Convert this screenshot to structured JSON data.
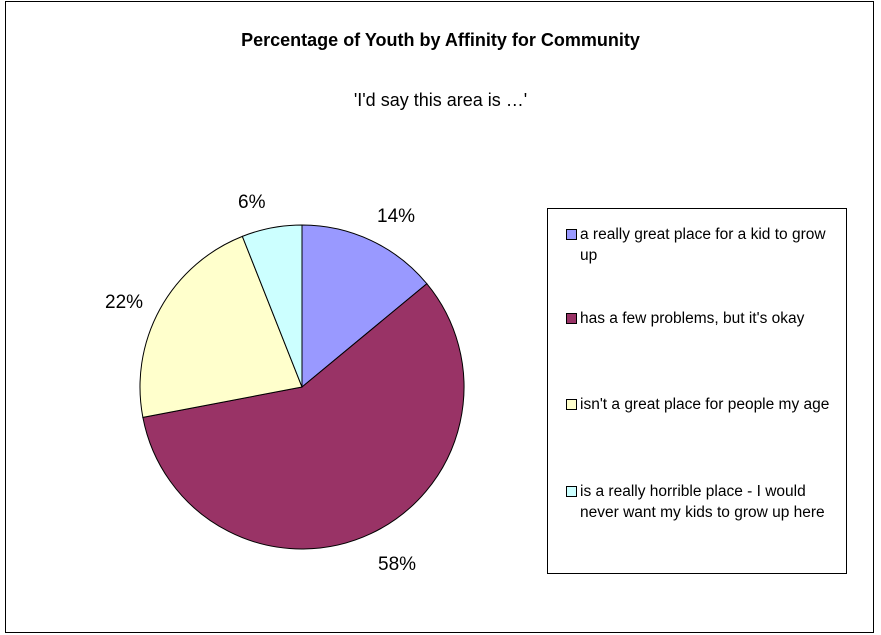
{
  "chart_data": {
    "type": "pie",
    "title": "Percentage of Youth by Affinity for Community",
    "subtitle": "'I'd say this area is …'",
    "legend_position": "right",
    "slices": [
      {
        "label": "a really great place for a kid to grow up",
        "value": 14,
        "value_label": "14%",
        "color": "#9999ff"
      },
      {
        "label": "has a few problems, but it's okay",
        "value": 58,
        "value_label": "58%",
        "color": "#993366"
      },
      {
        "label": "isn't a great place for people my age",
        "value": 22,
        "value_label": "22%",
        "color": "#ffffcc"
      },
      {
        "label": "is a really horrible place - I would never want my kids to grow up here",
        "value": 6,
        "value_label": "6%",
        "color": "#ccffff"
      }
    ]
  }
}
